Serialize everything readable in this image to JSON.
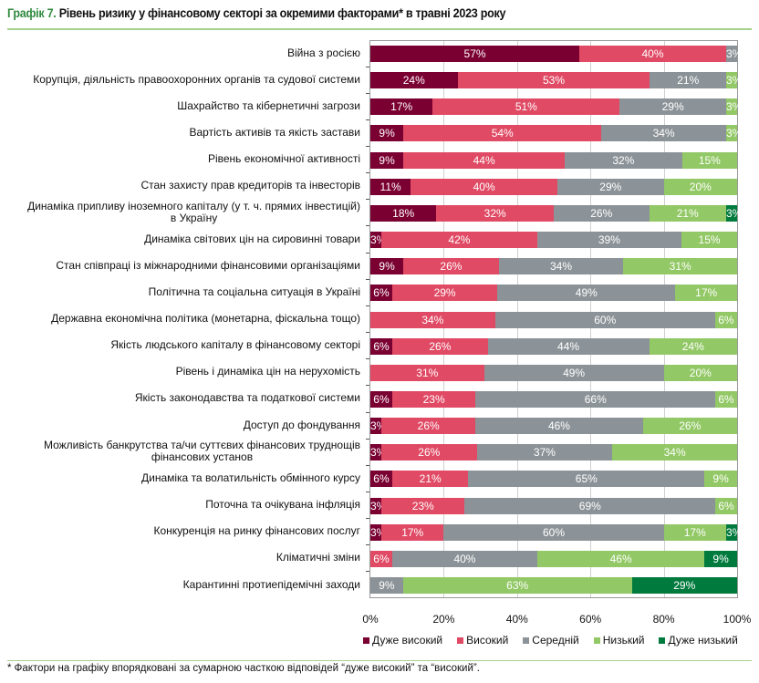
{
  "header": {
    "title_prefix": "Графік 7.",
    "title": "Рівень ризику у фінансовому секторі за окремими факторами* в травні 2023 року"
  },
  "footnote": "* Фактори на графіку впорядковані за сумарною часткою відповідей “дуже високий” та “високий”.",
  "chart_data": {
    "type": "bar",
    "orientation": "horizontal",
    "stacked": "percent",
    "xlim": [
      0,
      100
    ],
    "xticks": [
      "0%",
      "20%",
      "40%",
      "60%",
      "80%",
      "100%"
    ],
    "grid": true,
    "legend_position": "bottom",
    "series": [
      {
        "name": "Дуже високий",
        "color": "#7b0032"
      },
      {
        "name": "Високий",
        "color": "#e04a64"
      },
      {
        "name": "Середній",
        "color": "#8c9398"
      },
      {
        "name": "Низький",
        "color": "#92c865"
      },
      {
        "name": "Дуже низький",
        "color": "#007a3d"
      }
    ],
    "categories": [
      {
        "label": "Війна з росією",
        "values": [
          57,
          40,
          3,
          null,
          null
        ]
      },
      {
        "label": "Корупція, діяльність правоохоронних органів та судової системи",
        "values": [
          24,
          53,
          21,
          3,
          null
        ]
      },
      {
        "label": "Шахрайство та кібернетичні загрози",
        "values": [
          17,
          51,
          29,
          3,
          null
        ]
      },
      {
        "label": "Вартість активів та якість застави",
        "values": [
          9,
          54,
          34,
          3,
          null
        ]
      },
      {
        "label": "Рівень економічної активності",
        "values": [
          9,
          44,
          32,
          15,
          null
        ]
      },
      {
        "label": "Стан захисту прав кредиторів та інвесторів",
        "values": [
          11,
          40,
          29,
          20,
          null
        ]
      },
      {
        "label": "Динаміка припливу іноземного капіталу (у т. ч. прямих інвестицій)\nв Україну",
        "values": [
          18,
          32,
          26,
          21,
          3
        ]
      },
      {
        "label": "Динаміка світових цін на сировинні товари",
        "values": [
          3,
          42,
          39,
          15,
          null
        ]
      },
      {
        "label": "Стан співпраці із міжнародними фінансовими організаціями",
        "values": [
          9,
          26,
          34,
          31,
          null
        ]
      },
      {
        "label": "Політична та соціальна ситуація в Україні",
        "values": [
          6,
          29,
          49,
          17,
          null
        ]
      },
      {
        "label": "Державна економічна політика (монетарна, фіскальна тощо)",
        "values": [
          null,
          34,
          60,
          6,
          null
        ]
      },
      {
        "label": "Якість людського капіталу в фінансовому секторі",
        "values": [
          6,
          26,
          44,
          24,
          null
        ]
      },
      {
        "label": "Рівень і динаміка цін на нерухомість",
        "values": [
          null,
          31,
          49,
          20,
          null
        ]
      },
      {
        "label": "Якість законодавства та податкової системи",
        "values": [
          6,
          23,
          66,
          6,
          null
        ]
      },
      {
        "label": "Доступ до фондування",
        "values": [
          3,
          26,
          46,
          26,
          null
        ]
      },
      {
        "label": "Можливість банкрутства та/чи суттєвих фінансових труднощів\nфінансових установ",
        "values": [
          3,
          26,
          37,
          34,
          null
        ]
      },
      {
        "label": "Динаміка та волатильність обмінного курсу",
        "values": [
          6,
          21,
          65,
          9,
          null
        ]
      },
      {
        "label": "Поточна та очікувана інфляція",
        "values": [
          3,
          23,
          69,
          6,
          null
        ]
      },
      {
        "label": "Конкуренція на ринку фінансових послуг",
        "values": [
          3,
          17,
          60,
          17,
          3
        ]
      },
      {
        "label": "Кліматичні зміни",
        "values": [
          null,
          6,
          40,
          46,
          9
        ]
      },
      {
        "label": "Карантинні протиепідемічні заходи",
        "values": [
          null,
          null,
          9,
          63,
          29
        ]
      }
    ]
  }
}
